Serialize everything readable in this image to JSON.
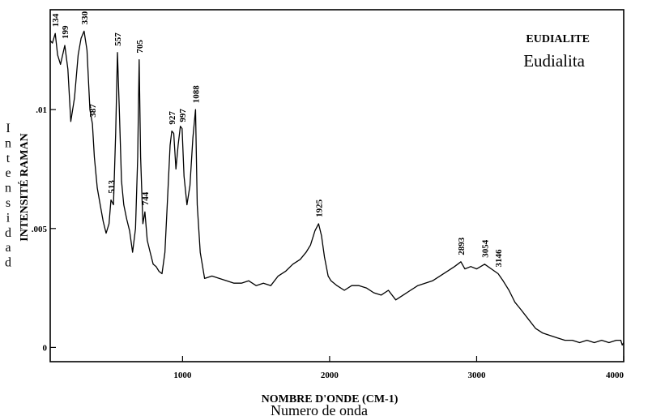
{
  "chart_data": {
    "type": "line",
    "title": "EUDIALITE",
    "subtitle": "Eudialita",
    "xlabel": "NOMBRE D'ONDE (CM-1)",
    "xlabel_secondary": "Numero de onda",
    "ylabel": "INTENSITÉ RAMAN",
    "ylabel_secondary": "Intensidad",
    "xlim": [
      100,
      4000
    ],
    "ylim": [
      -0.0006,
      0.0142
    ],
    "x_ticks": [
      {
        "value": 1000,
        "label": "1000"
      },
      {
        "value": 2000,
        "label": "2000"
      },
      {
        "value": 3000,
        "label": "3000"
      },
      {
        "value": 4000,
        "label": "4000"
      }
    ],
    "y_ticks": [
      {
        "value": 0,
        "label": "0"
      },
      {
        "value": 0.005,
        "label": ".005"
      },
      {
        "value": 0.01,
        "label": ".01"
      }
    ],
    "grid": false,
    "peaks": [
      {
        "x": 134,
        "label": "134"
      },
      {
        "x": 199,
        "label": "199"
      },
      {
        "x": 330,
        "label": "330"
      },
      {
        "x": 387,
        "label": "387"
      },
      {
        "x": 513,
        "label": "513"
      },
      {
        "x": 557,
        "label": "557"
      },
      {
        "x": 705,
        "label": "705"
      },
      {
        "x": 744,
        "label": "744"
      },
      {
        "x": 927,
        "label": "927"
      },
      {
        "x": 997,
        "label": "997"
      },
      {
        "x": 1088,
        "label": "1088"
      },
      {
        "x": 1925,
        "label": "1925"
      },
      {
        "x": 2893,
        "label": "2893"
      },
      {
        "x": 3054,
        "label": "3054"
      },
      {
        "x": 3146,
        "label": "3146"
      }
    ],
    "series": [
      {
        "x": [
          100,
          115,
          134,
          150,
          170,
          199,
          220,
          240,
          265,
          290,
          310,
          330,
          350,
          370,
          387,
          400,
          420,
          440,
          460,
          480,
          500,
          513,
          530,
          545,
          557,
          570,
          585,
          600,
          620,
          640,
          660,
          680,
          695,
          705,
          715,
          730,
          744,
          760,
          780,
          800,
          820,
          840,
          860,
          880,
          900,
          915,
          927,
          940,
          955,
          970,
          985,
          997,
          1010,
          1030,
          1050,
          1070,
          1088,
          1100,
          1120,
          1150,
          1200,
          1250,
          1300,
          1350,
          1400,
          1450,
          1500,
          1550,
          1600,
          1650,
          1700,
          1750,
          1800,
          1840,
          1870,
          1900,
          1925,
          1945,
          1965,
          1990,
          2010,
          2050,
          2100,
          2150,
          2200,
          2250,
          2300,
          2350,
          2400,
          2450,
          2500,
          2550,
          2600,
          2650,
          2700,
          2750,
          2800,
          2850,
          2893,
          2920,
          2960,
          3000,
          3054,
          3100,
          3146,
          3180,
          3220,
          3260,
          3300,
          3350,
          3400,
          3450,
          3500,
          3550,
          3600,
          3650,
          3700,
          3750,
          3800,
          3850,
          3900,
          3950,
          3980,
          3990,
          4000
        ],
        "y": [
          0.0129,
          0.0128,
          0.0132,
          0.0123,
          0.0119,
          0.0127,
          0.0117,
          0.0095,
          0.0105,
          0.0123,
          0.013,
          0.0133,
          0.0125,
          0.01,
          0.0094,
          0.008,
          0.0067,
          0.006,
          0.0053,
          0.0048,
          0.0052,
          0.0062,
          0.006,
          0.009,
          0.0124,
          0.01,
          0.007,
          0.006,
          0.0054,
          0.0049,
          0.004,
          0.005,
          0.008,
          0.0121,
          0.008,
          0.0052,
          0.0057,
          0.0045,
          0.004,
          0.0035,
          0.0034,
          0.0032,
          0.0031,
          0.004,
          0.0065,
          0.0085,
          0.0091,
          0.009,
          0.0075,
          0.0085,
          0.0093,
          0.0092,
          0.0072,
          0.006,
          0.0068,
          0.0088,
          0.01,
          0.006,
          0.004,
          0.0029,
          0.003,
          0.0029,
          0.0028,
          0.0027,
          0.0027,
          0.0028,
          0.0026,
          0.0027,
          0.0026,
          0.003,
          0.0032,
          0.0035,
          0.0037,
          0.004,
          0.0043,
          0.0049,
          0.0052,
          0.0047,
          0.0038,
          0.003,
          0.0028,
          0.0026,
          0.0024,
          0.0026,
          0.0026,
          0.0025,
          0.0023,
          0.0022,
          0.0024,
          0.002,
          0.0022,
          0.0024,
          0.0026,
          0.0027,
          0.0028,
          0.003,
          0.0032,
          0.0034,
          0.0036,
          0.0033,
          0.0034,
          0.0033,
          0.0035,
          0.0033,
          0.0031,
          0.0028,
          0.0024,
          0.0019,
          0.0016,
          0.0012,
          0.0008,
          0.0006,
          0.0005,
          0.0004,
          0.0003,
          0.0003,
          0.0002,
          0.0003,
          0.0002,
          0.0003,
          0.0002,
          0.0003,
          0.0003,
          0.0001,
          0.0002
        ]
      }
    ]
  }
}
